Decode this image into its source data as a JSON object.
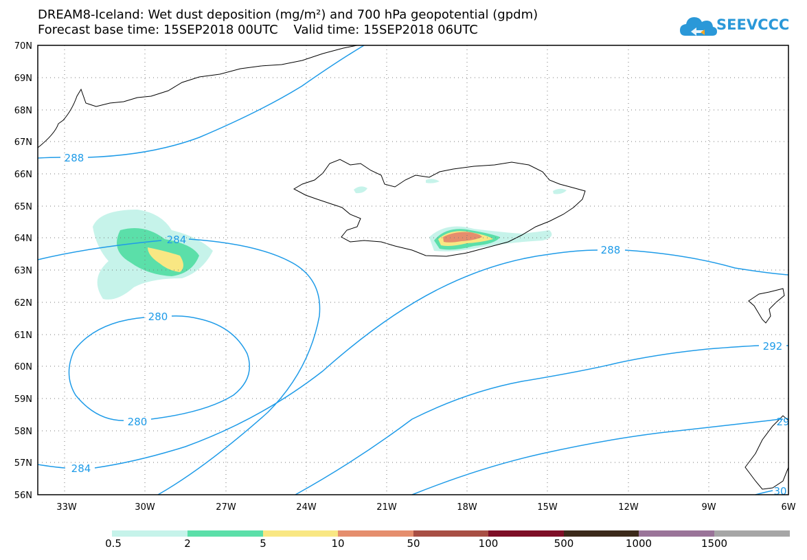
{
  "title": {
    "line1": "DREAM8-Iceland: Wet dust deposition (mg/m²) and 700 hPa geopotential (gpdm)",
    "line2": "Forecast base time: 15SEP2018 00UTC    Valid time: 15SEP2018 06UTC"
  },
  "logo": {
    "text": "SEEVCCC",
    "icon": "cloud-icon",
    "color": "#2a98d8"
  },
  "map": {
    "lat_labels": [
      "70N",
      "69N",
      "68N",
      "67N",
      "66N",
      "65N",
      "64N",
      "63N",
      "62N",
      "61N",
      "60N",
      "59N",
      "58N",
      "57N",
      "56N"
    ],
    "lon_labels": [
      "33W",
      "30W",
      "27W",
      "24W",
      "21W",
      "18W",
      "15W",
      "12W",
      "9W",
      "6W"
    ],
    "contour_color": "#1e9be8",
    "contour_labels": {
      "c288_west": "288",
      "c284_top": "284",
      "c280_top": "280",
      "c280_bottom": "280",
      "c284_bottom": "284",
      "c288_east": "288",
      "c292": "292",
      "c296_edge": "29",
      "c300_edge": "30"
    }
  },
  "colorbar": {
    "labels": [
      "0.5",
      "2",
      "5",
      "10",
      "50",
      "100",
      "500",
      "1000",
      "1500"
    ],
    "colors": [
      "#c6f3ea",
      "#5bdfa9",
      "#f9e783",
      "#e58e6d",
      "#a84f44",
      "#7e0f27",
      "#3c2a1a",
      "#9a7499",
      "#a6a6a6"
    ]
  }
}
